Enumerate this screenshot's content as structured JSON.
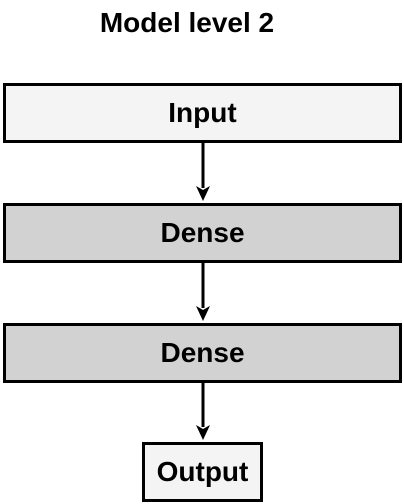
{
  "diagram": {
    "title": "Model level 2",
    "nodes": {
      "input": "Input",
      "dense_1": "Dense",
      "dense_2": "Dense",
      "output": "Output"
    },
    "edges": [
      [
        "input",
        "dense_1"
      ],
      [
        "dense_1",
        "dense_2"
      ],
      [
        "dense_2",
        "output"
      ]
    ],
    "colors": {
      "input_fill": "#f4f4f4",
      "dense_fill": "#d2d2d2",
      "output_fill": "#f4f4f4",
      "stroke": "#000000"
    }
  }
}
